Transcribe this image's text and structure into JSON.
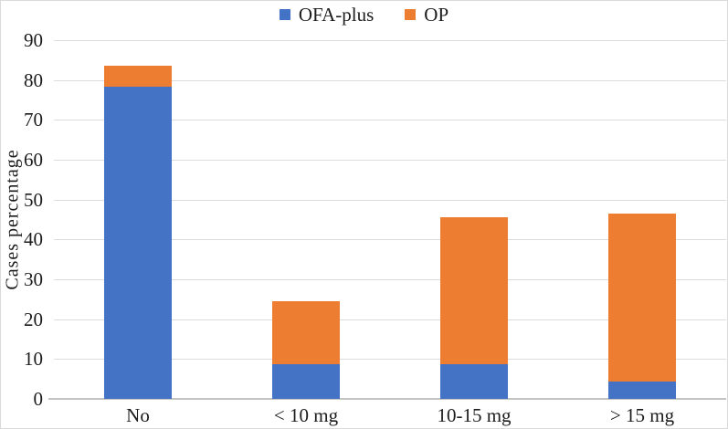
{
  "chart_data": {
    "type": "stacked-bar",
    "categories": [
      "No",
      "< 10 mg",
      "10-15 mg",
      "> 15 mg"
    ],
    "series": [
      {
        "name": "OFA-plus",
        "color": "#4472C4",
        "values": [
          78.3,
          8.7,
          8.7,
          4.3
        ]
      },
      {
        "name": "OP",
        "color": "#ED7D31",
        "values": [
          5.3,
          15.8,
          36.8,
          42.1
        ]
      }
    ],
    "title": "",
    "xlabel": "",
    "ylabel": "Cases percentage",
    "ylim": [
      0,
      90
    ],
    "yticks": [
      0,
      10,
      20,
      30,
      40,
      50,
      60,
      70,
      80,
      90
    ],
    "legend_position": "top-center",
    "grid": "horizontal",
    "gridline_color": "#dcdcdc",
    "axis_line_color": "#c3c3c3",
    "text_color": "#1c1c1c",
    "background_color": "#ffffff"
  }
}
